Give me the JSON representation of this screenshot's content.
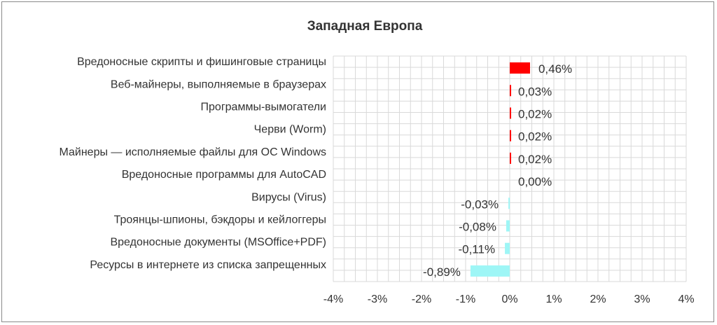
{
  "chart_data": {
    "type": "bar",
    "orientation": "horizontal",
    "title": "Западная Европа",
    "categories": [
      "Вредоносные скрипты и фишинговые страницы",
      "Веб-майнеры, выполняемые в браузерах",
      "Программы-вымогатели",
      "Черви (Worm)",
      "Майнеры — исполняемые файлы для ОС Windows",
      "Вредоносные программы для AutoCAD",
      "Вирусы (Virus)",
      "Троянцы-шпионы, бэкдоры и кейлоггеры",
      "Вредоносные документы (MSOffice+PDF)",
      "Ресурсы в интернете из списка запрещенных"
    ],
    "values": [
      0.46,
      0.03,
      0.02,
      0.02,
      0.02,
      0.0,
      -0.03,
      -0.08,
      -0.11,
      -0.89
    ],
    "value_labels": [
      "0,46%",
      "0,03%",
      "0,02%",
      "0,02%",
      "0,02%",
      "0,00%",
      "-0,03%",
      "-0,08%",
      "-0,11%",
      "-0,89%"
    ],
    "xlim": [
      -4,
      4
    ],
    "x_ticks": [
      -4,
      -3,
      -2,
      -1,
      0,
      1,
      2,
      3,
      4
    ],
    "x_tick_labels": [
      "-4%",
      "-3%",
      "-2%",
      "-1%",
      "0%",
      "1%",
      "2%",
      "3%",
      "4%"
    ],
    "xlabel": "",
    "ylabel": "",
    "grid": true,
    "legend": "none",
    "colors": {
      "positive": "#ff0000",
      "negative": "#9ef6f6",
      "grid": "#d9d9d9",
      "text": "#333333",
      "frame": "#8a8a8a"
    }
  }
}
